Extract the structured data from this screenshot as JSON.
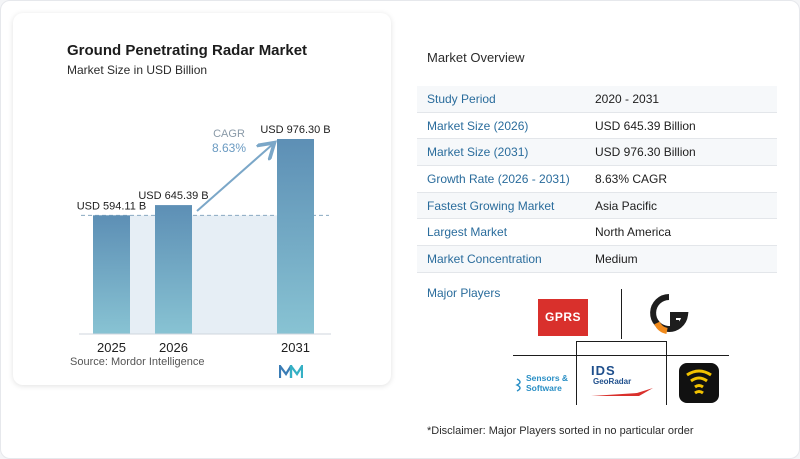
{
  "left": {
    "title": "Ground Penetrating Radar Market",
    "subtitle": "Market Size in USD Billion",
    "source": "Source:  Mordor Intelligence"
  },
  "chart_data": {
    "type": "bar",
    "title": "Ground Penetrating Radar Market",
    "subtitle": "Market Size in USD Billion",
    "categories": [
      "2025",
      "2026",
      "2031"
    ],
    "values": [
      594.11,
      645.39,
      976.3
    ],
    "data_labels": [
      "USD 594.11 B",
      "USD 645.39 B",
      "USD 976.30 B"
    ],
    "ylim": [
      0,
      1000
    ],
    "grid": false,
    "cagr_label": "CAGR",
    "cagr_value": "8.63%",
    "colors": {
      "bar": "#6a9cc0",
      "bar_top": "#5d8fb5",
      "bar_bottom": "#88c3d3",
      "band": "#e6eef5",
      "arrow": "#7ba7c8",
      "cagr": "#6b9bc2"
    }
  },
  "overview": {
    "title": "Market Overview",
    "rows": [
      {
        "label": "Study Period",
        "value": "2020 - 2031"
      },
      {
        "label": "Market Size (2026)",
        "value": "USD 645.39 Billion"
      },
      {
        "label": "Market Size (2031)",
        "value": "USD 976.30 Billion"
      },
      {
        "label": "Growth Rate (2026 - 2031)",
        "value": "8.63% CAGR"
      },
      {
        "label": "Fastest Growing Market",
        "value": "Asia Pacific"
      },
      {
        "label": "Largest Market",
        "value": "North America"
      },
      {
        "label": "Market Concentration",
        "value": "Medium"
      }
    ]
  },
  "players": {
    "title": "Major Players",
    "gprs": "GPRS",
    "ids_top": "IDS",
    "ids_bottom": "GeoRadar",
    "sensors_line1": "Sensors &",
    "sensors_line2": "Software"
  },
  "disclaimer": "*Disclaimer: Major Players sorted in no particular order"
}
